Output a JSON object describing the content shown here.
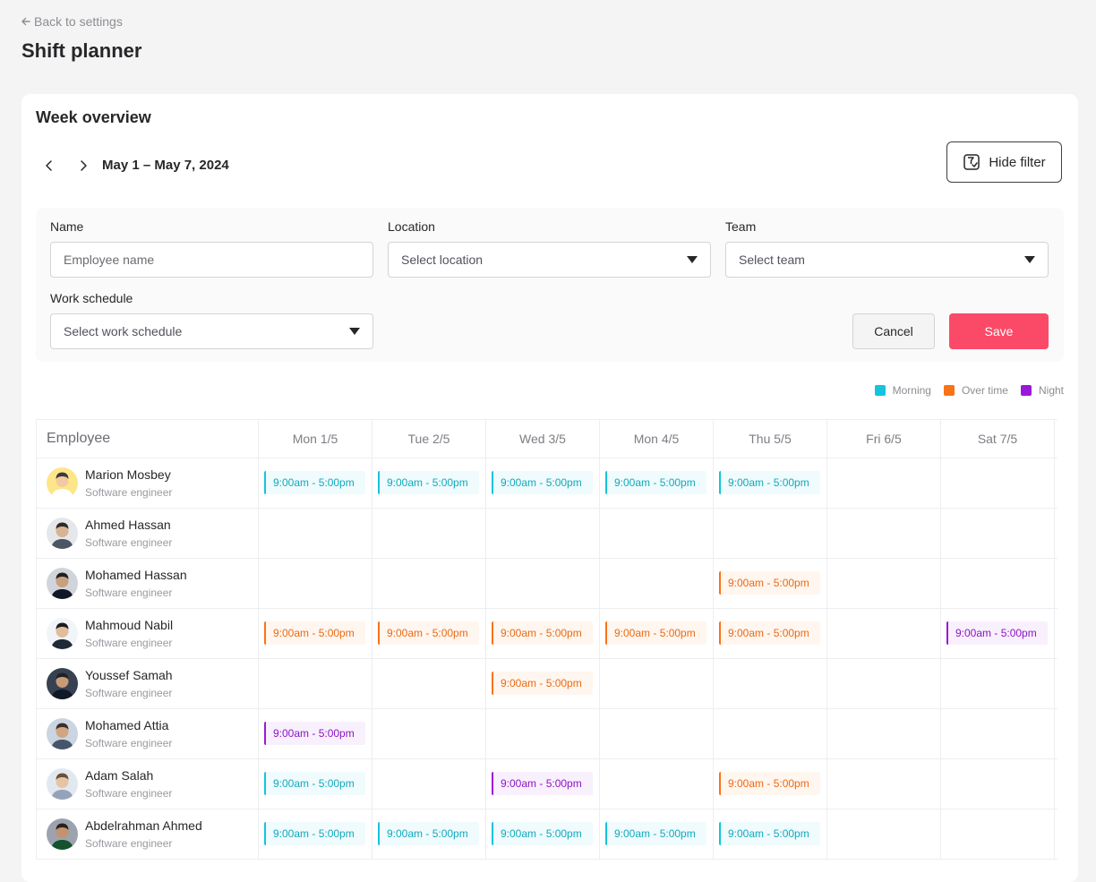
{
  "back_link": "Back to settings",
  "page_title": "Shift planner",
  "week_title": "Week overview",
  "date_range": "May 1 – May 7, 2024",
  "hide_filter_label": "Hide filter",
  "filters": {
    "name": {
      "label": "Name",
      "placeholder": "Employee name"
    },
    "location": {
      "label": "Location",
      "value": "Select location"
    },
    "team": {
      "label": "Team",
      "value": "Select team"
    },
    "work_schedule": {
      "label": "Work schedule",
      "value": "Select work schedule"
    }
  },
  "buttons": {
    "cancel": "Cancel",
    "save": "Save"
  },
  "legend": [
    {
      "label": "Morning",
      "color": "#14c4dc"
    },
    {
      "label": "Over time",
      "color": "#f97316"
    },
    {
      "label": "Night",
      "color": "#9b18d8"
    }
  ],
  "columns": [
    "Employee",
    "Mon 1/5",
    "Tue 2/5",
    "Wed 3/5",
    "Mon 4/5",
    "Thu 5/5",
    "Fri 6/5",
    "Sat 7/5"
  ],
  "employees": [
    {
      "name": "Marion Mosbey",
      "role": "Software engineer",
      "shifts": [
        "morning",
        "morning",
        "morning",
        "morning",
        "morning",
        "",
        ""
      ]
    },
    {
      "name": "Ahmed Hassan",
      "role": "Software engineer",
      "shifts": [
        "",
        "",
        "",
        "",
        "",
        "",
        ""
      ]
    },
    {
      "name": "Mohamed Hassan",
      "role": "Software engineer",
      "shifts": [
        "",
        "",
        "",
        "",
        "overtime",
        "",
        ""
      ]
    },
    {
      "name": "Mahmoud Nabil",
      "role": "Software engineer",
      "shifts": [
        "overtime",
        "overtime",
        "overtime",
        "overtime",
        "overtime",
        "",
        "night"
      ]
    },
    {
      "name": "Youssef Samah",
      "role": "Software engineer",
      "shifts": [
        "",
        "",
        "overtime",
        "",
        "",
        "",
        ""
      ]
    },
    {
      "name": "Mohamed Attia",
      "role": "Software engineer",
      "shifts": [
        "night",
        "",
        "",
        "",
        "",
        "",
        ""
      ]
    },
    {
      "name": "Adam Salah",
      "role": "Software engineer",
      "shifts": [
        "morning",
        "",
        "night",
        "",
        "overtime",
        "",
        ""
      ]
    },
    {
      "name": "Abdelrahman Ahmed",
      "role": "Software engineer",
      "shifts": [
        "morning",
        "morning",
        "morning",
        "morning",
        "morning",
        "",
        ""
      ]
    }
  ],
  "shift_time": "9:00am - 5:00pm"
}
